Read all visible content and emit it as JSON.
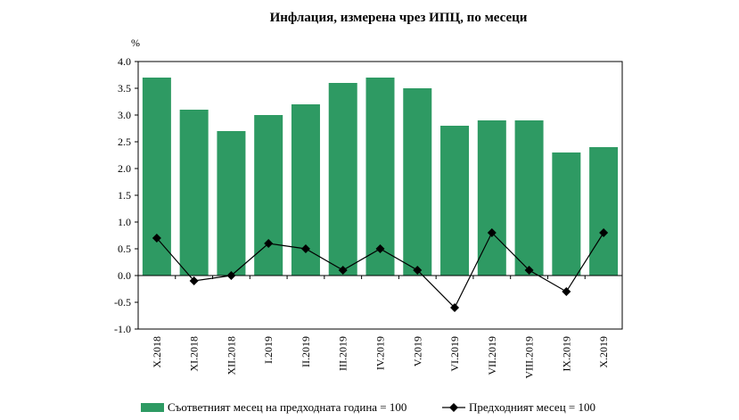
{
  "chart_data": {
    "type": "bar",
    "title": "Инфлация, измерена чрез ИПЦ, по месеци",
    "ylabel": "%",
    "xlabel": "",
    "ylim": [
      -1.0,
      4.0
    ],
    "yticks": [
      "4.0",
      "3.5",
      "3.0",
      "2.5",
      "2.0",
      "1.5",
      "1.0",
      "0.5",
      "0.0",
      "-0.5",
      "-1.0"
    ],
    "categories": [
      "X.2018",
      "XI.2018",
      "XII.2018",
      "I.2019",
      "II.2019",
      "III.2019",
      "IV.2019",
      "V.2019",
      "VI.2019",
      "VII.2019",
      "VIII.2019",
      "IX.2019",
      "X.2019"
    ],
    "series": [
      {
        "name": "Съответният месец на предходната година = 100",
        "kind": "bar",
        "color": "#2e9a63",
        "values": [
          3.7,
          3.1,
          2.7,
          3.0,
          3.2,
          3.6,
          3.7,
          3.5,
          2.8,
          2.9,
          2.9,
          2.3,
          2.4
        ]
      },
      {
        "name": "Предходният месец = 100",
        "kind": "line",
        "marker": "diamond",
        "color": "#000000",
        "values": [
          0.7,
          -0.1,
          0.0,
          0.6,
          0.5,
          0.1,
          0.5,
          0.1,
          -0.6,
          0.8,
          0.1,
          -0.3,
          0.8
        ]
      }
    ],
    "legend_position": "bottom",
    "grid": false
  }
}
